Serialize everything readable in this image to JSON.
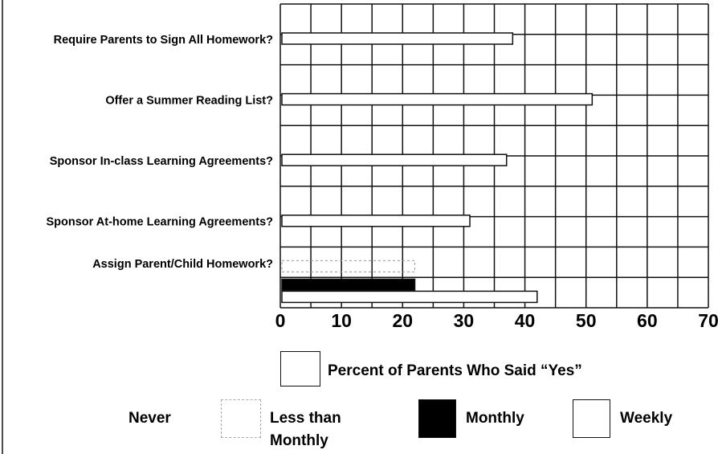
{
  "chart_data": {
    "type": "hbar",
    "categories": [
      "Require Parents to Sign All Homework?",
      "Offer a Summer Reading List?",
      "Sponsor In-class Learning Agreements?",
      "Sponsor At-home Learning Agreements?",
      "Assign Parent/Child Homework?"
    ],
    "series": [
      {
        "name": "Percent of Parents Who Said “Yes”",
        "color": "#ffffff",
        "values": [
          38,
          51,
          37,
          31,
          null
        ]
      },
      {
        "name": "Never",
        "color": null,
        "values": [
          null,
          null,
          null,
          null,
          null
        ]
      },
      {
        "name": "Less than Monthly",
        "color": "dashed",
        "values": [
          null,
          null,
          null,
          null,
          22
        ]
      },
      {
        "name": "Monthly",
        "color": "#000000",
        "values": [
          null,
          null,
          null,
          null,
          22
        ]
      },
      {
        "name": "Weekly",
        "color": "#ffffff",
        "values": [
          null,
          null,
          null,
          null,
          42
        ]
      }
    ],
    "xlim": [
      0,
      70
    ],
    "xticks": [
      0,
      10,
      20,
      30,
      40,
      50,
      60,
      70
    ],
    "minor_xticks": [
      5,
      15,
      25,
      35,
      45,
      55,
      65
    ],
    "grid": true
  }
}
